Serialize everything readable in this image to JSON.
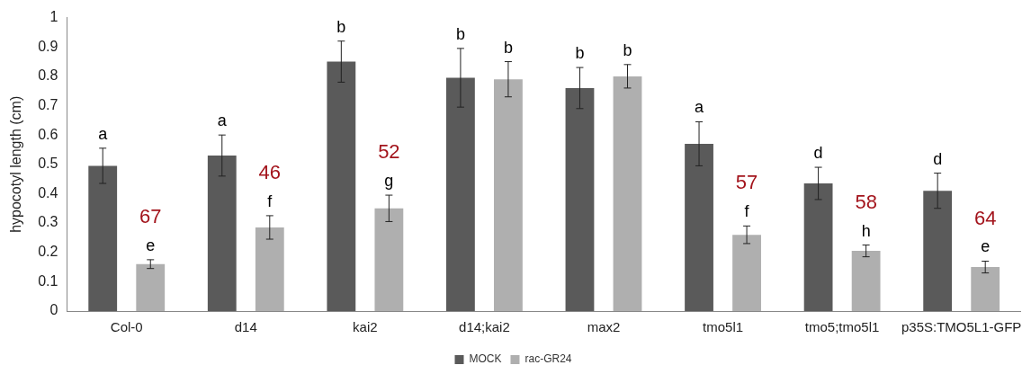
{
  "chart_data": {
    "type": "bar",
    "ylabel": "hypocotyl length (cm)",
    "categories": [
      "Col-0",
      "d14",
      "kai2",
      "d14;kai2",
      "max2",
      "tmo5l1",
      "tmo5;tmo5l1",
      "p35S:TMO5L1-GFP"
    ],
    "series": [
      {
        "name": "MOCK",
        "color": "#5a5a5a",
        "values": [
          0.495,
          0.53,
          0.85,
          0.795,
          0.76,
          0.57,
          0.435,
          0.41
        ],
        "errors": [
          0.06,
          0.07,
          0.07,
          0.1,
          0.07,
          0.075,
          0.055,
          0.06
        ],
        "value_labels": [
          "a",
          "a",
          "b",
          "b",
          "b",
          "a",
          "d",
          "d"
        ]
      },
      {
        "name": "rac-GR24",
        "color": "#afafaf",
        "values": [
          0.16,
          0.285,
          0.35,
          0.79,
          0.8,
          0.26,
          0.205,
          0.15
        ],
        "errors": [
          0.015,
          0.04,
          0.045,
          0.06,
          0.04,
          0.03,
          0.02,
          0.02
        ],
        "value_labels": [
          "e",
          "f",
          "g",
          "b",
          "b",
          "f",
          "h",
          "e"
        ]
      }
    ],
    "ylim": [
      0,
      1
    ],
    "yticks": [
      0,
      0.1,
      0.2,
      0.3,
      0.4,
      0.5,
      0.6,
      0.7,
      0.8,
      0.9,
      1
    ],
    "grid": false,
    "legend": "bottom",
    "annotations": [
      "67",
      "46",
      "52",
      "57",
      "58",
      "64"
    ]
  }
}
